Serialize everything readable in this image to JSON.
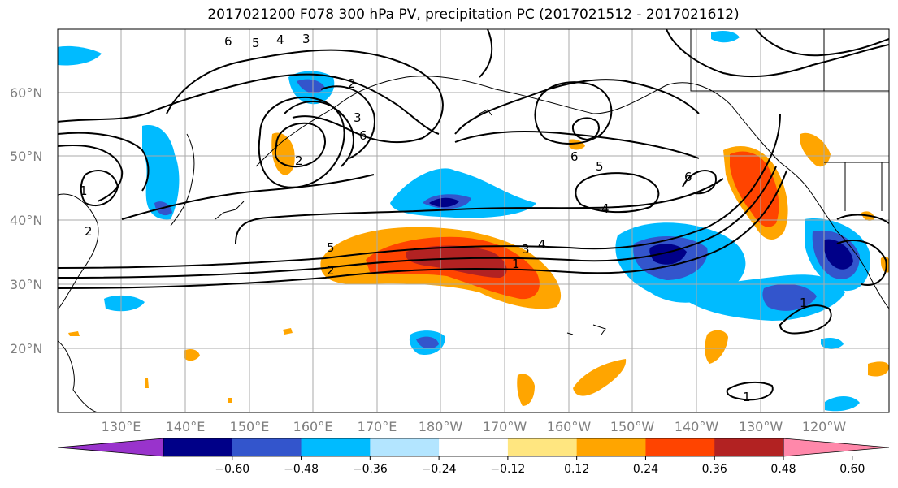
{
  "title": "2017021200 F078 300 hPa PV, precipitation PC (2017021512 - 2017021612)",
  "lat_labels": [
    "60°N",
    "50°N",
    "40°N",
    "30°N",
    "20°N"
  ],
  "lon_labels": [
    "130°E",
    "140°E",
    "150°E",
    "160°E",
    "170°E",
    "180°W",
    "170°W",
    "160°W",
    "150°W",
    "140°W",
    "130°W",
    "120°W"
  ],
  "colorbar": {
    "ticks": [
      "−0.60",
      "−0.48",
      "−0.36",
      "−0.24",
      "−0.12",
      "0.12",
      "0.24",
      "0.36",
      "0.48",
      "0.60"
    ],
    "colors": [
      "#9933cc",
      "#000088",
      "#3355cc",
      "#00bbff",
      "#b3e5ff",
      "#ffffff",
      "#ffe680",
      "#ffa500",
      "#ff4400",
      "#b22222",
      "#ff88aa"
    ]
  },
  "contour_labels": [
    "6",
    "5",
    "4",
    "3",
    "2",
    "2",
    "3",
    "6",
    "6",
    "5",
    "4",
    "1",
    "2",
    "5",
    "2",
    "4",
    "3",
    "1",
    "6",
    "1",
    "1"
  ],
  "colors": {
    "contour": "#000000",
    "grid": "#aaaaaa",
    "coast": "#000000"
  }
}
